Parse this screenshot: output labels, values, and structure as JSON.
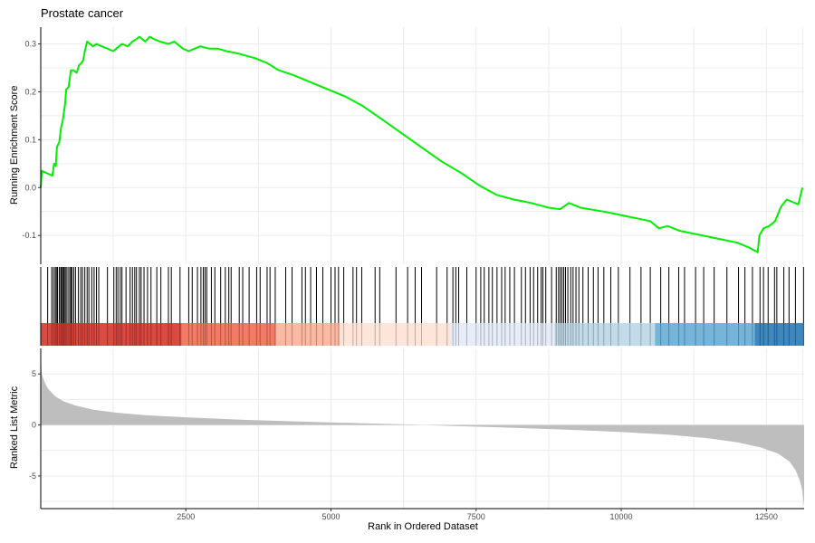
{
  "chart_data": {
    "type": "line",
    "title": "Prostate cancer",
    "xlabel": "Rank in Ordered Dataset",
    "ylabel_top": "Running Enrichment Score",
    "ylabel_bottom": "Ranked List Metric",
    "xlim": [
      1,
      13150
    ],
    "x_ticks": [
      2500,
      5000,
      7500,
      10000,
      12500
    ],
    "x_tick_labels": [
      "2500",
      "5000",
      "7500",
      "10000",
      "12500"
    ],
    "es_ylim": [
      -0.16,
      0.335
    ],
    "es_ticks": [
      0.3,
      0.2,
      0.1,
      0.0,
      -0.1
    ],
    "es_tick_labels": [
      "0.3",
      "0.2",
      "0.1",
      "0.0",
      "-0.1"
    ],
    "metric_ylim": [
      -8.2,
      7.5
    ],
    "metric_ticks": [
      5,
      0,
      -5
    ],
    "metric_tick_labels": [
      "5",
      "0",
      "-5"
    ],
    "line_color": "#00ee00",
    "fill_color": "#bebebe",
    "running_score": [
      [
        1,
        0.0
      ],
      [
        20,
        0.035
      ],
      [
        200,
        0.025
      ],
      [
        230,
        0.05
      ],
      [
        260,
        0.045
      ],
      [
        280,
        0.085
      ],
      [
        320,
        0.095
      ],
      [
        350,
        0.125
      ],
      [
        380,
        0.14
      ],
      [
        420,
        0.175
      ],
      [
        440,
        0.205
      ],
      [
        480,
        0.21
      ],
      [
        520,
        0.245
      ],
      [
        560,
        0.245
      ],
      [
        620,
        0.24
      ],
      [
        660,
        0.255
      ],
      [
        700,
        0.26
      ],
      [
        730,
        0.265
      ],
      [
        760,
        0.285
      ],
      [
        800,
        0.305
      ],
      [
        850,
        0.3
      ],
      [
        900,
        0.295
      ],
      [
        960,
        0.3
      ],
      [
        1050,
        0.295
      ],
      [
        1150,
        0.29
      ],
      [
        1250,
        0.285
      ],
      [
        1300,
        0.29
      ],
      [
        1400,
        0.3
      ],
      [
        1500,
        0.295
      ],
      [
        1580,
        0.305
      ],
      [
        1650,
        0.31
      ],
      [
        1700,
        0.315
      ],
      [
        1800,
        0.305
      ],
      [
        1880,
        0.315
      ],
      [
        1950,
        0.31
      ],
      [
        2050,
        0.305
      ],
      [
        2200,
        0.3
      ],
      [
        2300,
        0.305
      ],
      [
        2450,
        0.29
      ],
      [
        2550,
        0.285
      ],
      [
        2650,
        0.29
      ],
      [
        2750,
        0.295
      ],
      [
        2900,
        0.29
      ],
      [
        3050,
        0.29
      ],
      [
        3200,
        0.285
      ],
      [
        3400,
        0.28
      ],
      [
        3550,
        0.275
      ],
      [
        3700,
        0.27
      ],
      [
        3900,
        0.26
      ],
      [
        4100,
        0.245
      ],
      [
        4350,
        0.235
      ],
      [
        4650,
        0.22
      ],
      [
        4950,
        0.205
      ],
      [
        5250,
        0.19
      ],
      [
        5550,
        0.17
      ],
      [
        5850,
        0.145
      ],
      [
        6200,
        0.115
      ],
      [
        6550,
        0.085
      ],
      [
        6900,
        0.055
      ],
      [
        7250,
        0.03
      ],
      [
        7550,
        0.005
      ],
      [
        7850,
        -0.015
      ],
      [
        8150,
        -0.025
      ],
      [
        8450,
        -0.032
      ],
      [
        8750,
        -0.042
      ],
      [
        8950,
        -0.045
      ],
      [
        9100,
        -0.032
      ],
      [
        9300,
        -0.042
      ],
      [
        9500,
        -0.046
      ],
      [
        9700,
        -0.05
      ],
      [
        9900,
        -0.055
      ],
      [
        10100,
        -0.06
      ],
      [
        10300,
        -0.065
      ],
      [
        10500,
        -0.07
      ],
      [
        10650,
        -0.085
      ],
      [
        10800,
        -0.08
      ],
      [
        11000,
        -0.09
      ],
      [
        11200,
        -0.095
      ],
      [
        11400,
        -0.1
      ],
      [
        11600,
        -0.105
      ],
      [
        11800,
        -0.11
      ],
      [
        12000,
        -0.115
      ],
      [
        12200,
        -0.125
      ],
      [
        12350,
        -0.135
      ],
      [
        12380,
        -0.1
      ],
      [
        12450,
        -0.085
      ],
      [
        12550,
        -0.08
      ],
      [
        12650,
        -0.07
      ],
      [
        12750,
        -0.04
      ],
      [
        12850,
        -0.025
      ],
      [
        12950,
        -0.03
      ],
      [
        13050,
        -0.035
      ],
      [
        13120,
        0.0
      ]
    ],
    "gene_hits": [
      120,
      190,
      220,
      250,
      270,
      290,
      320,
      345,
      360,
      380,
      400,
      420,
      440,
      470,
      500,
      520,
      540,
      570,
      600,
      650,
      690,
      720,
      760,
      800,
      830,
      880,
      920,
      960,
      1000,
      1150,
      1260,
      1300,
      1330,
      1370,
      1400,
      1470,
      1540,
      1580,
      1620,
      1650,
      1700,
      1730,
      1780,
      1840,
      1900,
      2000,
      2070,
      2200,
      2250,
      2400,
      2550,
      2610,
      2700,
      2760,
      2800,
      2830,
      2860,
      2940,
      3000,
      3100,
      3180,
      3240,
      3280,
      3420,
      3480,
      3590,
      3720,
      3780,
      3900,
      3950,
      4040,
      4220,
      4330,
      4500,
      4560,
      4650,
      4750,
      4860,
      5000,
      5070,
      5130,
      5220,
      5380,
      5440,
      5530,
      5760,
      5840,
      6120,
      6320,
      6450,
      6560,
      6820,
      7000,
      7100,
      7150,
      7200,
      7340,
      7500,
      7580,
      7640,
      7720,
      7780,
      7860,
      7940,
      8000,
      8080,
      8160,
      8280,
      8350,
      8430,
      8490,
      8560,
      8620,
      8650,
      8700,
      8800,
      8880,
      8920,
      8950,
      8980,
      9010,
      9040,
      9080,
      9130,
      9170,
      9220,
      9270,
      9340,
      9430,
      9520,
      9600,
      9700,
      9820,
      9950,
      10150,
      10340,
      10500,
      10680,
      10820,
      10990,
      11090,
      11280,
      11420,
      11600,
      11820,
      12020,
      12130,
      12260,
      12390,
      12450,
      12530,
      12640,
      12680,
      12800,
      12890,
      13000,
      13140
    ],
    "color_bands": [
      {
        "from": 1,
        "to": 2430,
        "color": "#d73b33"
      },
      {
        "from": 2430,
        "to": 4050,
        "color": "#f27058"
      },
      {
        "from": 4050,
        "to": 5150,
        "color": "#fab39a"
      },
      {
        "from": 5150,
        "to": 7060,
        "color": "#fde3d7"
      },
      {
        "from": 7060,
        "to": 8850,
        "color": "#e4ecf8"
      },
      {
        "from": 8850,
        "to": 10580,
        "color": "#bdd8e8"
      },
      {
        "from": 10580,
        "to": 12300,
        "color": "#6baed6"
      },
      {
        "from": 12300,
        "to": 13150,
        "color": "#2f7db9"
      }
    ],
    "ranked_metric": [
      [
        1,
        6.8
      ],
      [
        20,
        5.0
      ],
      [
        60,
        4.3
      ],
      [
        120,
        3.6
      ],
      [
        250,
        2.8
      ],
      [
        400,
        2.3
      ],
      [
        600,
        1.9
      ],
      [
        900,
        1.5
      ],
      [
        1300,
        1.2
      ],
      [
        1800,
        0.95
      ],
      [
        2500,
        0.75
      ],
      [
        3500,
        0.5
      ],
      [
        4500,
        0.32
      ],
      [
        5500,
        0.17
      ],
      [
        6300,
        0.05
      ],
      [
        6600,
        0.0
      ],
      [
        7000,
        -0.08
      ],
      [
        8000,
        -0.25
      ],
      [
        9000,
        -0.45
      ],
      [
        10000,
        -0.7
      ],
      [
        10800,
        -0.95
      ],
      [
        11500,
        -1.3
      ],
      [
        12000,
        -1.7
      ],
      [
        12400,
        -2.2
      ],
      [
        12700,
        -2.8
      ],
      [
        12900,
        -3.6
      ],
      [
        13000,
        -4.4
      ],
      [
        13080,
        -5.5
      ],
      [
        13120,
        -6.5
      ],
      [
        13150,
        -8.0
      ]
    ]
  }
}
